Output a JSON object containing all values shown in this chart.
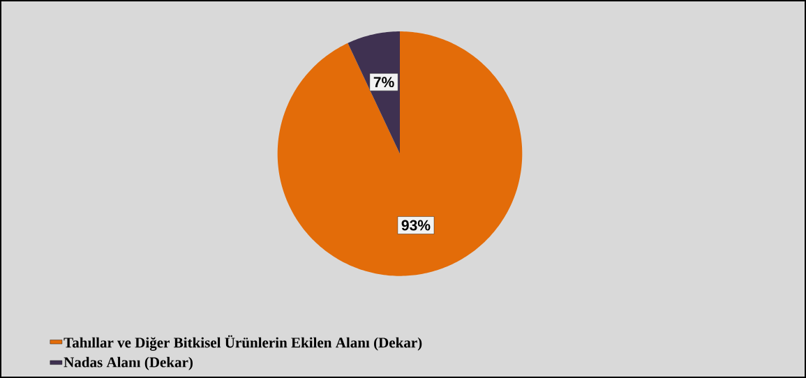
{
  "chart_data": {
    "type": "pie",
    "categories": [
      "Tahıllar ve Diğer Bitkisel Ürünlerin Ekilen Alanı (Dekar)",
      "Nadas Alanı (Dekar)"
    ],
    "values": [
      93,
      7
    ],
    "value_labels": [
      "93%",
      "7%"
    ],
    "colors": [
      "#e36c09",
      "#3f3151"
    ],
    "legend": "bottom left"
  }
}
